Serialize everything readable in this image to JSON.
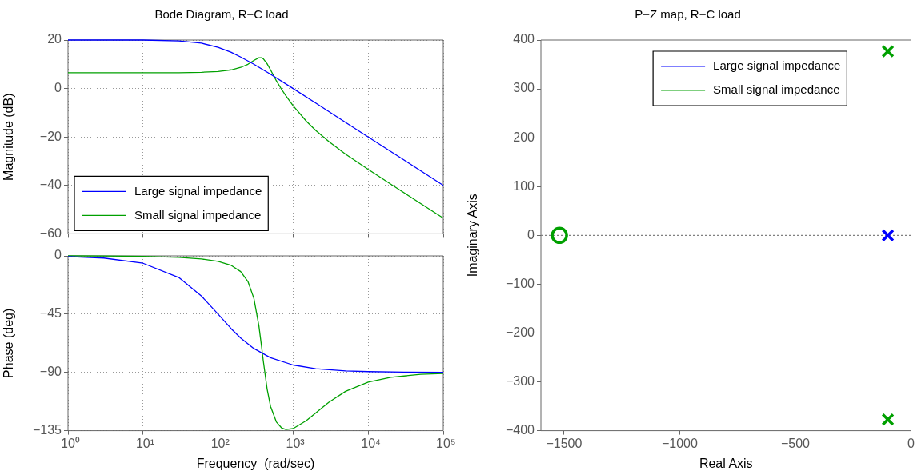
{
  "chart_data": [
    {
      "type": "line",
      "title": "Bode Diagram, R−C load",
      "ylabel": "Magnitude (dB)",
      "log": "x",
      "xlim": [
        1,
        100000
      ],
      "xticks": [
        {
          "value": 1,
          "label": null
        },
        {
          "value": 10,
          "label": null
        },
        {
          "value": 100,
          "label": null
        },
        {
          "value": 1000,
          "label": null
        },
        {
          "value": 10000,
          "label": null
        },
        {
          "value": 100000,
          "label": null
        }
      ],
      "ylim": [
        -60,
        20
      ],
      "yticks": [
        -60,
        -40,
        -20,
        0,
        20
      ],
      "tick_labels": "y",
      "grid": true,
      "legend": "bottom left",
      "marker": "none",
      "line_style": "solid",
      "series": [
        {
          "name": "Large signal impedance",
          "color": "#0000ff",
          "x": [
            1,
            3,
            10,
            30,
            60,
            100,
            150,
            200,
            300,
            500,
            1000,
            2000,
            5000,
            10000,
            30000,
            100000
          ],
          "values": [
            20,
            20,
            20,
            19.6,
            18.7,
            17,
            14.9,
            13,
            10,
            5.9,
            0,
            -6,
            -14,
            -20,
            -29.5,
            -40
          ]
        },
        {
          "name": "Small signal impedance",
          "color": "#00a000",
          "x": [
            1,
            3,
            10,
            30,
            60,
            100,
            150,
            200,
            250,
            300,
            350,
            380,
            400,
            450,
            500,
            600,
            700,
            800,
            1000,
            1500,
            2000,
            3000,
            5000,
            10000,
            20000,
            50000,
            100000
          ],
          "values": [
            6.5,
            6.5,
            6.5,
            6.5,
            6.7,
            7,
            7.7,
            8.7,
            10,
            11.6,
            12.7,
            12.7,
            12.3,
            10.2,
            7.7,
            3.1,
            -0.3,
            -3,
            -7.1,
            -13.5,
            -17.3,
            -21.9,
            -27.1,
            -33.4,
            -39.5,
            -47.5,
            -53.5
          ]
        }
      ]
    },
    {
      "type": "line",
      "xlabel": "Frequency  (rad/sec)",
      "ylabel": "Phase (deg)",
      "log": "x",
      "xlim": [
        1,
        100000
      ],
      "xticks": [
        {
          "value": 1,
          "label": "10⁰"
        },
        {
          "value": 10,
          "label": "10¹"
        },
        {
          "value": 100,
          "label": "10²"
        },
        {
          "value": 1000,
          "label": "10³"
        },
        {
          "value": 10000,
          "label": "10⁴"
        },
        {
          "value": 100000,
          "label": "10⁵"
        }
      ],
      "ylim": [
        -135,
        0
      ],
      "yticks": [
        -135,
        -90,
        -45,
        0
      ],
      "grid": true,
      "marker": "none",
      "line_style": "solid",
      "series": [
        {
          "color": "#0000ff",
          "x": [
            1,
            3,
            10,
            30,
            60,
            100,
            150,
            200,
            300,
            500,
            1000,
            2000,
            5000,
            10000,
            30000,
            100000
          ],
          "values": [
            -0.6,
            -1.7,
            -5.7,
            -16.7,
            -31.0,
            -45.0,
            -56.3,
            -63.4,
            -71.6,
            -78.7,
            -84.3,
            -87.1,
            -88.9,
            -89.4,
            -89.8,
            -89.9
          ]
        },
        {
          "color": "#00a000",
          "x": [
            1,
            3,
            10,
            30,
            60,
            100,
            150,
            200,
            250,
            300,
            350,
            380,
            400,
            450,
            500,
            600,
            700,
            800,
            1000,
            1500,
            2000,
            3000,
            5000,
            10000,
            20000,
            50000,
            100000
          ],
          "values": [
            0,
            -0.1,
            -0.4,
            -1.1,
            -2.4,
            -4.3,
            -7.4,
            -12.1,
            -19.8,
            -32.8,
            -54.1,
            -70.2,
            -80.9,
            -102.8,
            -116.2,
            -128.4,
            -132.8,
            -134.1,
            -133.4,
            -127.2,
            -121.3,
            -113.0,
            -104.6,
            -97.5,
            -93.8,
            -91.5,
            -90.8
          ]
        }
      ]
    },
    {
      "type": "scatter",
      "title": "P−Z map, R−C load",
      "xlabel": "Real Axis",
      "ylabel": "Imaginary Axis",
      "xlim": [
        -1600,
        0
      ],
      "xticks": [
        -1500,
        -1000,
        -500,
        0
      ],
      "ylim": [
        -400,
        400
      ],
      "yticks": [
        -400,
        -300,
        -200,
        -100,
        0,
        100,
        200,
        300,
        400
      ],
      "grid": false,
      "legend": "top",
      "ref_lines": [
        {
          "axis": "y",
          "value": 0,
          "color": "#808080",
          "line_style": "dotted"
        }
      ],
      "series": [
        {
          "name": "Large signal impedance",
          "color": "#0000ff",
          "marker": "cross",
          "x": [
            -100
          ],
          "values": [
            0
          ]
        },
        {
          "name": "Small signal impedance",
          "color": "#00a000",
          "marker": "cross",
          "x": [
            -100,
            -100
          ],
          "values": [
            377,
            -377
          ]
        },
        {
          "color": "#00a000",
          "marker": "circle",
          "x": [
            -1520
          ],
          "values": [
            0
          ]
        }
      ]
    }
  ]
}
